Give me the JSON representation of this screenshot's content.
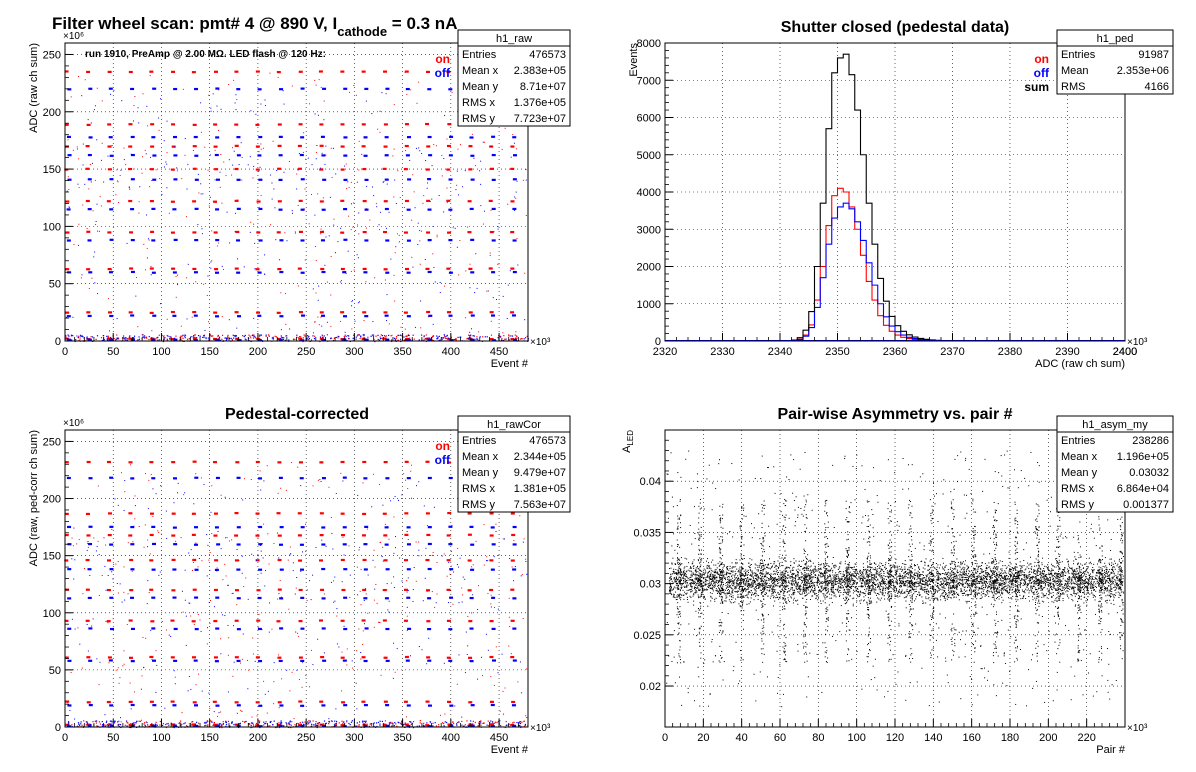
{
  "page": {
    "title_prefix": "Filter wheel scan: pmt#   4 @   890 V, I",
    "title_sub": "cathode",
    "title_suffix": " = 0.3 nA"
  },
  "colors": {
    "on": "#ff0000",
    "off": "#0000ff",
    "sum": "#000000",
    "axis": "#000000",
    "grid": "#000000"
  },
  "chart_data": [
    {
      "id": "raw",
      "type": "scatter",
      "title": "",
      "info": "run 1910, PreAmp @ 2.00 MΩ. LED flash @  120 Hz:",
      "xlabel": "Event #",
      "ylabel": "ADC (raw ch sum)",
      "xexp": "×10³",
      "yexp": "×10⁶",
      "xlim": [
        0,
        480
      ],
      "ylim": [
        0,
        260
      ],
      "xticks": [
        0,
        50,
        100,
        150,
        200,
        250,
        300,
        350,
        400,
        450
      ],
      "yticks": [
        0,
        50,
        100,
        150,
        200,
        250
      ],
      "legend": [
        "on",
        "off"
      ],
      "stats": {
        "name": "h1_raw",
        "rows": [
          [
            "Entries",
            "476573"
          ],
          [
            "Mean x",
            "2.383e+05"
          ],
          [
            "Mean y",
            "8.71e+07"
          ],
          [
            "RMS x",
            "1.376e+05"
          ],
          [
            "RMS y",
            "7.723e+07"
          ]
        ]
      },
      "levels": {
        "on": [
          235,
          189,
          170,
          150,
          122,
          95,
          63,
          25,
          2
        ],
        "off": [
          220,
          178,
          162,
          141,
          115,
          88,
          60,
          22,
          1
        ]
      },
      "period": 22,
      "first": 2
    },
    {
      "id": "ped",
      "type": "line",
      "title": "Shutter closed (pedestal data)",
      "xlabel": "ADC (raw ch sum)",
      "ylabel": "Events",
      "xexp": "×10³",
      "xlim": [
        2320,
        2400
      ],
      "ylim": [
        0,
        8000
      ],
      "xticks": [
        2320,
        2330,
        2340,
        2350,
        2360,
        2370,
        2380,
        2390,
        2400
      ],
      "yticks": [
        0,
        1000,
        2000,
        3000,
        4000,
        5000,
        6000,
        7000,
        8000
      ],
      "legend": [
        "on",
        "off",
        "sum"
      ],
      "stats": {
        "name": "h1_ped",
        "rows": [
          [
            "Entries",
            "91987"
          ],
          [
            "Mean",
            "2.353e+06"
          ],
          [
            "RMS",
            "4166"
          ]
        ]
      },
      "x": [
        2340,
        2341,
        2342,
        2343,
        2344,
        2345,
        2346,
        2347,
        2348,
        2349,
        2350,
        2351,
        2352,
        2353,
        2354,
        2355,
        2356,
        2357,
        2358,
        2359,
        2360,
        2361,
        2362,
        2363,
        2364,
        2365,
        2366,
        2367,
        2368,
        2369,
        2370,
        2371,
        2372,
        2373,
        2374,
        2375,
        2376,
        2377,
        2378,
        2379,
        2380
      ],
      "series": [
        {
          "name": "on",
          "values": [
            2,
            5,
            15,
            50,
            160,
            430,
            1100,
            2000,
            3100,
            3900,
            4100,
            4000,
            3600,
            3000,
            2300,
            1600,
            1100,
            680,
            420,
            260,
            160,
            100,
            65,
            40,
            28,
            18,
            12,
            8,
            5,
            4,
            3,
            2,
            2,
            1,
            1,
            1,
            0,
            0,
            0,
            0,
            0
          ]
        },
        {
          "name": "off",
          "values": [
            2,
            4,
            12,
            40,
            130,
            360,
            900,
            1700,
            2600,
            3300,
            3600,
            3700,
            3550,
            3200,
            2700,
            2100,
            1500,
            1000,
            650,
            400,
            250,
            160,
            100,
            65,
            42,
            28,
            18,
            12,
            8,
            5,
            4,
            3,
            2,
            2,
            1,
            1,
            1,
            0,
            0,
            0,
            0
          ]
        },
        {
          "name": "sum",
          "values": [
            4,
            9,
            27,
            90,
            290,
            790,
            2000,
            3700,
            5700,
            7200,
            7600,
            7700,
            7150,
            6200,
            5000,
            3700,
            2600,
            1680,
            1070,
            660,
            410,
            260,
            165,
            105,
            70,
            46,
            30,
            20,
            13,
            9,
            7,
            5,
            4,
            3,
            2,
            2,
            1,
            0,
            0,
            0,
            0
          ]
        }
      ]
    },
    {
      "id": "cor",
      "type": "scatter",
      "title": "Pedestal-corrected",
      "xlabel": "Event #",
      "ylabel": "ADC (raw, ped-corr ch sum)",
      "xexp": "×10³",
      "yexp": "×10⁶",
      "xlim": [
        0,
        480
      ],
      "ylim": [
        0,
        260
      ],
      "xticks": [
        0,
        50,
        100,
        150,
        200,
        250,
        300,
        350,
        400,
        450
      ],
      "yticks": [
        0,
        50,
        100,
        150,
        200,
        250
      ],
      "legend": [
        "on",
        "off"
      ],
      "stats": {
        "name": "h1_rawCor",
        "rows": [
          [
            "Entries",
            "476573"
          ],
          [
            "Mean x",
            "2.344e+05"
          ],
          [
            "Mean y",
            "9.479e+07"
          ],
          [
            "RMS x",
            "1.381e+05"
          ],
          [
            "RMS y",
            "7.563e+07"
          ]
        ]
      },
      "levels": {
        "on": [
          232,
          187,
          168,
          146,
          120,
          93,
          61,
          22,
          2
        ],
        "off": [
          218,
          175,
          160,
          138,
          113,
          86,
          58,
          19,
          1
        ]
      },
      "period": 22,
      "first": 2
    },
    {
      "id": "asym",
      "type": "scatter",
      "title": "Pair-wise Asymmetry vs. pair #",
      "xlabel": "Pair #",
      "ylabel": "A",
      "ylabel_sub": "LED",
      "xexp": "×10³",
      "xlim": [
        0,
        240
      ],
      "ylim": [
        0.016,
        0.045
      ],
      "xticks": [
        0,
        20,
        40,
        60,
        80,
        100,
        120,
        140,
        160,
        180,
        200,
        220
      ],
      "yticks": [
        0.02,
        0.025,
        0.03,
        0.035,
        0.04
      ],
      "stats": {
        "name": "h1_asym_my",
        "rows": [
          [
            "Entries",
            "238286"
          ],
          [
            "Mean x",
            "1.196e+05"
          ],
          [
            "Mean y",
            "0.03032"
          ],
          [
            "RMS x",
            "6.864e+04"
          ],
          [
            "RMS y",
            "0.001377"
          ]
        ]
      },
      "center": 0.0303,
      "spike_period": 11,
      "spike_first": 7
    }
  ]
}
